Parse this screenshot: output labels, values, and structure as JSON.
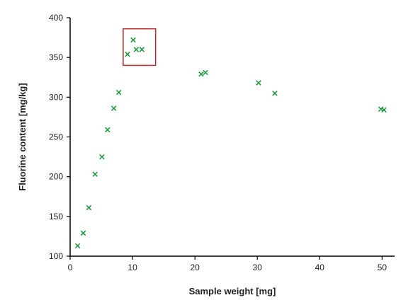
{
  "chart_data": {
    "type": "scatter",
    "title": "",
    "xlabel": "Sample weight [mg]",
    "ylabel": "Fluorine content [mg/kg]",
    "xlim": [
      0,
      52
    ],
    "ylim": [
      100,
      400
    ],
    "xticks": [
      0,
      10,
      20,
      30,
      40,
      50
    ],
    "yticks": [
      100,
      150,
      200,
      250,
      300,
      350,
      400
    ],
    "grid": false,
    "legend": "none",
    "marker": "x",
    "marker_color": "#1e9e3e",
    "highlight_color": "#c0282d",
    "series": [
      {
        "x": [
          1.2,
          2.1,
          3.0,
          4.0,
          5.1,
          6.0,
          7.0,
          7.8,
          9.2,
          10.1,
          10.6,
          11.5,
          21.0,
          21.7,
          30.2,
          32.8,
          49.8,
          50.3
        ],
        "y": [
          113,
          129,
          161,
          203,
          225,
          259,
          286,
          306,
          354,
          372,
          360,
          360,
          329,
          331,
          318,
          305,
          285,
          284
        ]
      }
    ],
    "highlight_box": {
      "x": [
        8.5,
        13.7
      ],
      "y": [
        340,
        386
      ]
    }
  }
}
